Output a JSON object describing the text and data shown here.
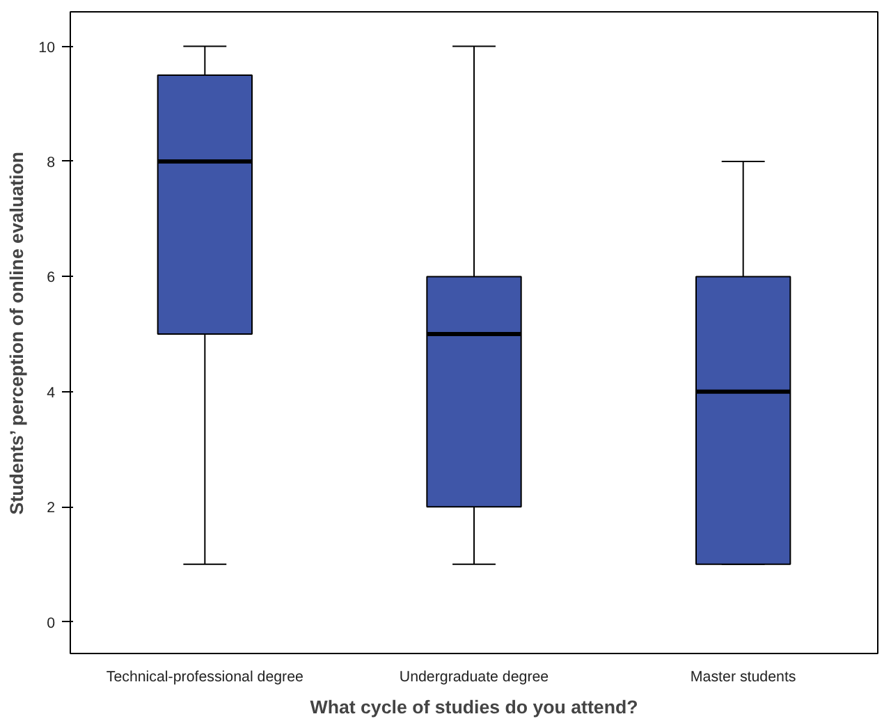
{
  "chart_data": {
    "type": "box",
    "xlabel": "What cycle of studies do you attend?",
    "ylabel": "Students’ perception of online evaluation",
    "categories": [
      "Technical-professional degree",
      "Undergraduate degree",
      "Master students"
    ],
    "color": "#3f56a8",
    "boxes": [
      {
        "low": 1,
        "q1": 5,
        "median": 8,
        "q3": 9.5,
        "high": 10
      },
      {
        "low": 1,
        "q1": 2,
        "median": 5,
        "q3": 6,
        "high": 10
      },
      {
        "low": 1,
        "q1": 1,
        "median": 4,
        "q3": 6,
        "high": 8
      }
    ],
    "ylim": [
      -0.55,
      10.6
    ],
    "yticks": [
      0,
      2,
      4,
      6,
      8,
      10
    ],
    "grid": false
  }
}
